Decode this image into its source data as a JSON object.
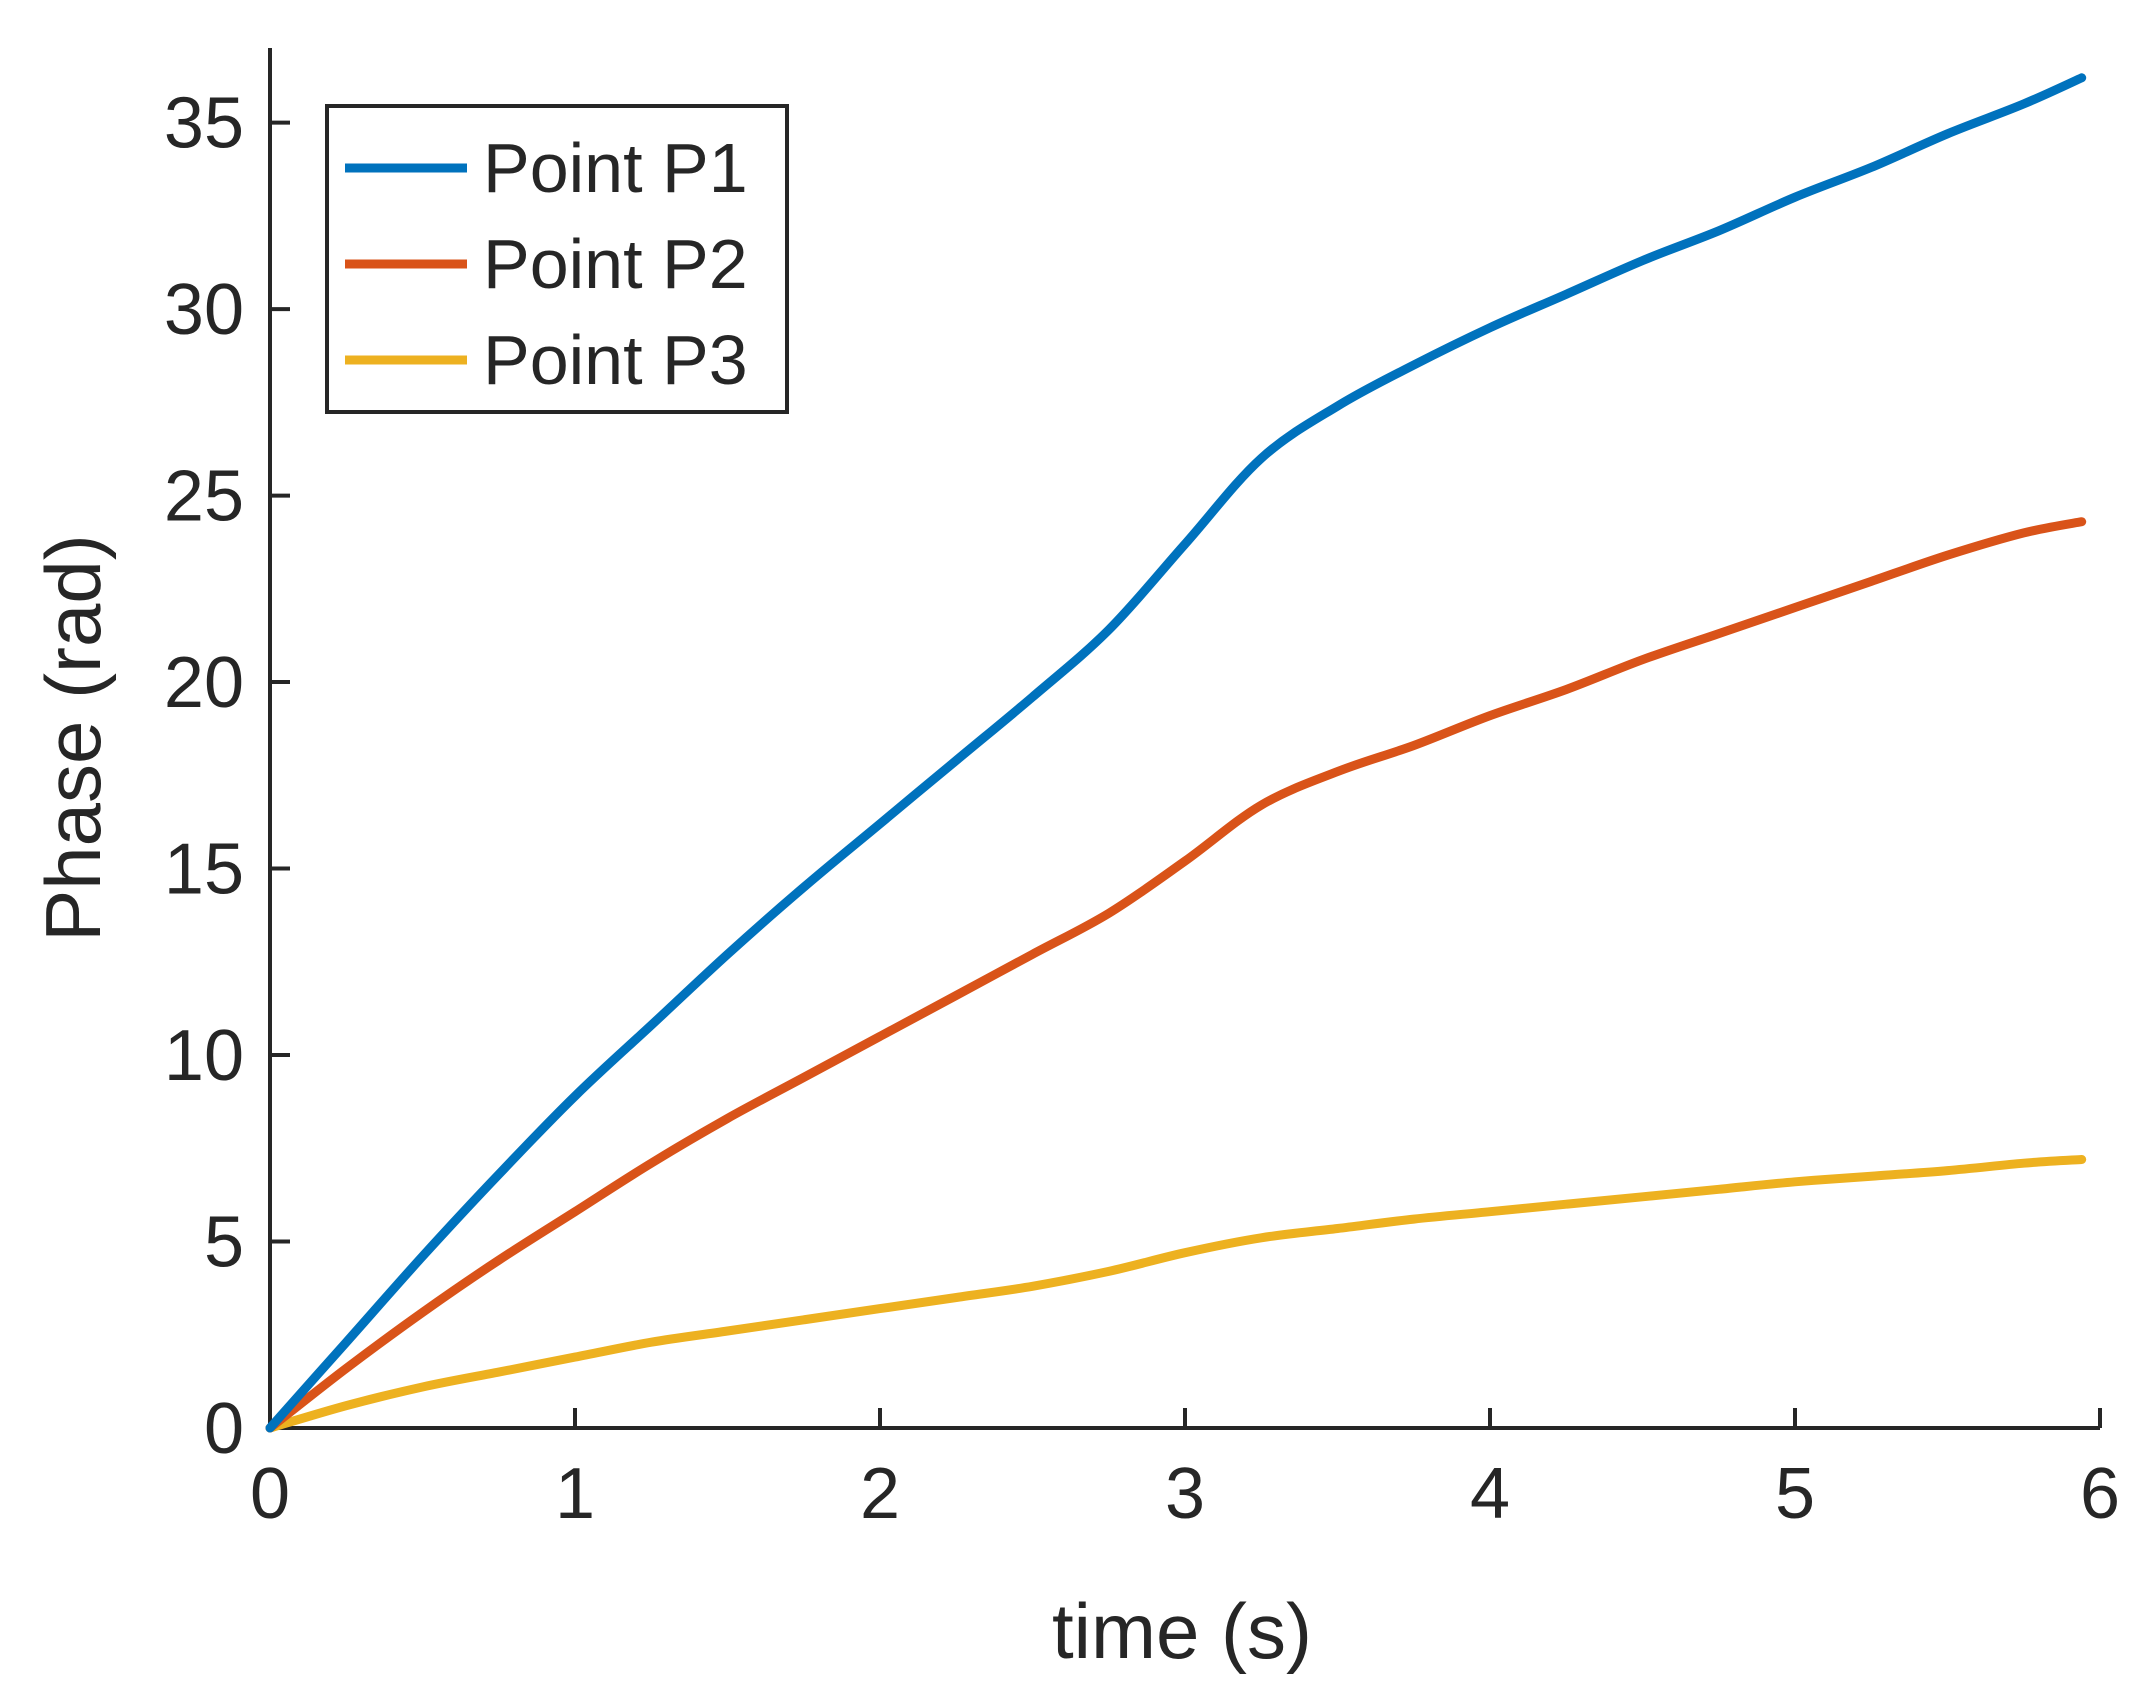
{
  "chart_data": {
    "type": "line",
    "title": "",
    "xlabel": "time (s)",
    "ylabel": "Phase (rad)",
    "xlim": [
      0,
      6
    ],
    "ylim": [
      0,
      37
    ],
    "xticks": [
      0,
      1,
      2,
      3,
      4,
      5,
      6
    ],
    "yticks": [
      0,
      5,
      10,
      15,
      20,
      25,
      30,
      35
    ],
    "grid": false,
    "legend_position": "top-left",
    "x": [
      0,
      0.25,
      0.5,
      0.75,
      1.0,
      1.25,
      1.5,
      1.75,
      2.0,
      2.25,
      2.5,
      2.75,
      3.0,
      3.25,
      3.5,
      3.75,
      4.0,
      4.25,
      4.5,
      4.75,
      5.0,
      5.25,
      5.5,
      5.75,
      5.94
    ],
    "series": [
      {
        "name": "Point P1",
        "color": "#0072BD",
        "values": [
          0,
          2.3,
          4.6,
          6.8,
          8.9,
          10.8,
          12.7,
          14.5,
          16.2,
          17.9,
          19.6,
          21.4,
          23.7,
          26.0,
          27.4,
          28.5,
          29.5,
          30.4,
          31.3,
          32.1,
          33.0,
          33.8,
          34.7,
          35.5,
          36.2
        ]
      },
      {
        "name": "Point P2",
        "color": "#D95319",
        "values": [
          0,
          1.6,
          3.1,
          4.5,
          5.8,
          7.1,
          8.3,
          9.4,
          10.5,
          11.6,
          12.7,
          13.8,
          15.2,
          16.7,
          17.6,
          18.3,
          19.1,
          19.8,
          20.6,
          21.3,
          22.0,
          22.7,
          23.4,
          24.0,
          24.3
        ]
      },
      {
        "name": "Point P3",
        "color": "#EDB120",
        "values": [
          0,
          0.6,
          1.1,
          1.5,
          1.9,
          2.3,
          2.6,
          2.9,
          3.2,
          3.5,
          3.8,
          4.2,
          4.7,
          5.1,
          5.35,
          5.6,
          5.8,
          6.0,
          6.2,
          6.4,
          6.6,
          6.75,
          6.9,
          7.1,
          7.2
        ]
      }
    ]
  }
}
